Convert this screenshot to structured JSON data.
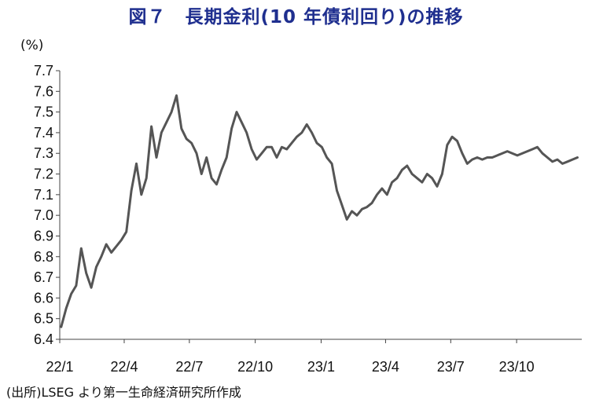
{
  "title": "図７　長期金利(10 年債利回り)の推移",
  "unit_label": "(%)",
  "source": "(出所)LSEG より第一生命経済研究所作成",
  "series_color": "#555555",
  "chart_data": {
    "type": "line",
    "title": "図７　長期金利(10 年債利回り)の推移",
    "ylabel": "(%)",
    "xlabel": "",
    "ylim": [
      6.4,
      7.7
    ],
    "yticks": [
      "7.7",
      "7.6",
      "7.5",
      "7.4",
      "7.3",
      "7.2",
      "7.1",
      "7.0",
      "6.9",
      "6.8",
      "6.7",
      "6.6",
      "6.5",
      "6.4"
    ],
    "xticks": [
      "22/1",
      "22/4",
      "22/7",
      "22/10",
      "23/1",
      "23/4",
      "23/7",
      "23/10"
    ],
    "grid": false,
    "legend": "none",
    "series": [
      {
        "x": [
          "2022-01-03",
          "2022-01-10",
          "2022-01-17",
          "2022-01-24",
          "2022-01-31",
          "2022-02-07",
          "2022-02-14",
          "2022-02-21",
          "2022-02-28",
          "2022-03-07",
          "2022-03-14",
          "2022-03-21",
          "2022-03-28",
          "2022-04-04",
          "2022-04-11",
          "2022-04-18",
          "2022-04-25",
          "2022-05-02",
          "2022-05-09",
          "2022-05-16",
          "2022-05-23",
          "2022-05-30",
          "2022-06-06",
          "2022-06-13",
          "2022-06-20",
          "2022-06-27",
          "2022-07-04",
          "2022-07-11",
          "2022-07-18",
          "2022-07-25",
          "2022-08-01",
          "2022-08-08",
          "2022-08-15",
          "2022-08-22",
          "2022-08-29",
          "2022-09-05",
          "2022-09-12",
          "2022-09-19",
          "2022-09-26",
          "2022-10-03",
          "2022-10-10",
          "2022-10-17",
          "2022-10-24",
          "2022-10-31",
          "2022-11-07",
          "2022-11-14",
          "2022-11-21",
          "2022-11-28",
          "2022-12-05",
          "2022-12-12",
          "2022-12-19",
          "2022-12-26",
          "2023-01-02",
          "2023-01-09",
          "2023-01-16",
          "2023-01-23",
          "2023-01-30",
          "2023-02-06",
          "2023-02-13",
          "2023-02-20",
          "2023-02-27",
          "2023-03-06",
          "2023-03-13",
          "2023-03-20",
          "2023-03-27",
          "2023-04-03",
          "2023-04-10",
          "2023-04-17",
          "2023-04-24",
          "2023-05-01",
          "2023-05-08",
          "2023-05-15",
          "2023-05-22",
          "2023-05-29",
          "2023-06-05",
          "2023-06-12",
          "2023-06-19",
          "2023-06-26",
          "2023-07-03",
          "2023-07-10",
          "2023-07-17",
          "2023-07-24",
          "2023-07-31",
          "2023-08-07",
          "2023-08-14",
          "2023-08-21",
          "2023-08-28",
          "2023-09-04",
          "2023-09-11",
          "2023-09-18",
          "2023-09-25",
          "2023-10-02",
          "2023-10-09",
          "2023-10-16",
          "2023-10-23",
          "2023-10-30",
          "2023-11-06",
          "2023-11-13",
          "2023-11-20",
          "2023-11-27",
          "2023-12-04",
          "2023-12-11",
          "2023-12-18",
          "2023-12-25"
        ],
        "values": [
          6.46,
          6.55,
          6.62,
          6.66,
          6.84,
          6.72,
          6.65,
          6.75,
          6.8,
          6.86,
          6.82,
          6.85,
          6.88,
          6.92,
          7.12,
          7.25,
          7.1,
          7.18,
          7.43,
          7.28,
          7.4,
          7.45,
          7.5,
          7.58,
          7.42,
          7.37,
          7.35,
          7.3,
          7.2,
          7.28,
          7.18,
          7.15,
          7.22,
          7.28,
          7.42,
          7.5,
          7.45,
          7.4,
          7.32,
          7.27,
          7.3,
          7.33,
          7.33,
          7.28,
          7.33,
          7.32,
          7.35,
          7.38,
          7.4,
          7.44,
          7.4,
          7.35,
          7.33,
          7.28,
          7.25,
          7.12,
          7.05,
          6.98,
          7.02,
          7.0,
          7.03,
          7.04,
          7.06,
          7.1,
          7.13,
          7.1,
          7.16,
          7.18,
          7.22,
          7.24,
          7.2,
          7.18,
          7.16,
          7.2,
          7.18,
          7.14,
          7.2,
          7.34,
          7.38,
          7.36,
          7.3,
          7.25,
          7.27,
          7.28,
          7.27,
          7.28,
          7.28,
          7.29,
          7.3,
          7.31,
          7.3,
          7.29,
          7.3,
          7.31,
          7.32,
          7.33,
          7.3,
          7.28,
          7.26,
          7.27,
          7.25,
          7.26,
          7.27,
          7.28
        ]
      }
    ]
  }
}
